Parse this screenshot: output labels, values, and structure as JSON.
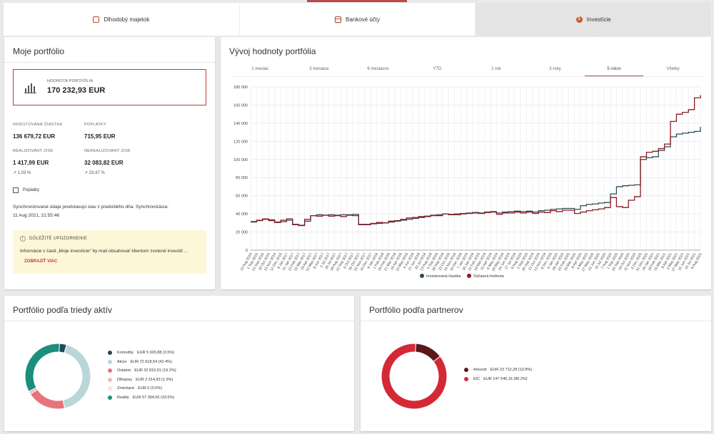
{
  "tabs": [
    {
      "label": "Dlhodobý majetok",
      "icon": "asset-icon"
    },
    {
      "label": "Bankové účty",
      "icon": "card-icon"
    },
    {
      "label": "Investície",
      "icon": "coin-icon"
    }
  ],
  "portfolio": {
    "title": "Moje portfólio",
    "value_label": "HODNOTA PORTFÓLIA",
    "value": "170 232,93 EUR",
    "invested_label": "INVESTOVANÁ ČIASTKA",
    "invested": "136 679,72 EUR",
    "fees_label": "POPLATKY",
    "fees": "715,95 EUR",
    "realized_label": "REALIZOVANÝ ZISK",
    "realized": "1 417,99 EUR",
    "realized_pct": "1,03 %",
    "unrealized_label": "NEREALIZOVANÝ ZISK",
    "unrealized": "32 083,82 EUR",
    "unrealized_pct": "23,47 %",
    "fees_checkbox": "Poplatky",
    "sync_text": "Synchronizované údaje predstavujú stav z predošlého dňa. Synchronizácia:",
    "sync_time": "11 Aug 2021, 21:55:46",
    "notice_title": "DÔLEŽITÉ UPOZORNENIE",
    "notice_text": "Informácie v časti „Moje investície“ by mali obsahovať klientom zvolené investič ...",
    "notice_link": "ZOBRAZIŤ VIAC"
  },
  "chart_card": {
    "title": "Vývoj hodnoty portfólia",
    "periods": [
      "1 mesiac",
      "3 mesiace",
      "6 mesiacov",
      "YTD",
      "1 rok",
      "3 roky",
      "5 rokov",
      "Všetky"
    ],
    "active_period": "5 rokov"
  },
  "chart_data": {
    "type": "line",
    "ylim": [
      0,
      180000
    ],
    "y_ticks": [
      0,
      20000,
      40000,
      60000,
      80000,
      100000,
      120000,
      140000,
      160000,
      180000
    ],
    "y_tick_labels": [
      "0",
      "20 000",
      "40 000",
      "60 000",
      "80 000",
      "100 000",
      "120 000",
      "140 000",
      "160 000",
      "180 000"
    ],
    "x_tick_labels": [
      "10 Aug 2016",
      "2 Sep 2016",
      "23 Sep 2016",
      "20 Oct 2016",
      "15 Nov 2016",
      "12 Dec 2016",
      "9 Jan 2017",
      "31 Jan 2017",
      "23 Feb 2017",
      "22 Mar 2017",
      "19 Apr 2017",
      "12 May 2017",
      "8 Jun 2017",
      "3 Jul 2017",
      "26 Jul 2017",
      "18 Aug 2017",
      "12 Sep 2017",
      "6 Oct 2017",
      "30 Oct 2017",
      "22 Nov 2017",
      "15 Dec 2017",
      "9 Jan 2018",
      "1 Feb 2018",
      "26 Feb 2018",
      "21 Mar 2018",
      "16 Apr 2018",
      "10 May 2018",
      "4 Jun 2018",
      "27 Jun 2018",
      "20 Jul 2018",
      "13 Aug 2018",
      "5 Sep 2018",
      "28 Sep 2018",
      "23 Oct 2018",
      "15 Nov 2018",
      "10 Dec 2018",
      "7 Jan 2019",
      "30 Jan 2019",
      "22 Feb 2019",
      "18 Mar 2019",
      "10 Apr 2019",
      "6 May 2019",
      "29 May 2019",
      "24 Jun 2019",
      "17 Jul 2019",
      "9 Aug 2019",
      "3 Sep 2019",
      "26 Sep 2019",
      "21 Oct 2019",
      "13 Nov 2019",
      "6 Dec 2019",
      "6 Jan 2020",
      "28 Jan 2020",
      "20 Feb 2020",
      "16 Mar 2020",
      "8 Apr 2020",
      "4 May 2020",
      "27 May 2020",
      "22 Jun 2020",
      "15 Jul 2020",
      "7 Aug 2020",
      "1 Sep 2020",
      "24 Sep 2020",
      "19 Oct 2020",
      "11 Nov 2020",
      "4 Dec 2020",
      "31 Dec 2020",
      "26 Jan 2021",
      "18 Feb 2021",
      "15 Mar 2021",
      "8 Apr 2021",
      "4 May 2021",
      "27 May 2021",
      "22 Jun 2021",
      "15 Jul 2021",
      "6 Aug 2021"
    ],
    "series": [
      {
        "name": "Investovaná čiastka",
        "color": "#2e4a5a",
        "values": [
          31000,
          33000,
          34000,
          33500,
          31000,
          31500,
          33000,
          28000,
          27000,
          32000,
          38000,
          39000,
          38500,
          39000,
          38500,
          39000,
          39000,
          39500,
          28000,
          28500,
          29000,
          29500,
          30000,
          31000,
          32000,
          33000,
          34000,
          35000,
          36000,
          37000,
          38000,
          39000,
          40000,
          39500,
          40000,
          40500,
          41000,
          41500,
          41000,
          42000,
          42500,
          41000,
          42000,
          42500,
          43000,
          42500,
          43000,
          42000,
          43500,
          44000,
          45000,
          45500,
          46000,
          46000,
          45000,
          49000,
          50500,
          51000,
          52000,
          52500,
          62000,
          70000,
          71000,
          71500,
          72000,
          100000,
          102000,
          103000,
          110000,
          114000,
          125000,
          128000,
          129000,
          130000,
          131000,
          136000
        ]
      },
      {
        "name": "Súčasná hodnota",
        "color": "#8b1a1f",
        "values": [
          31500,
          32500,
          34500,
          32500,
          30500,
          33000,
          34500,
          28500,
          27500,
          34000,
          38000,
          37500,
          38500,
          37500,
          38000,
          37000,
          38500,
          38000,
          28500,
          28000,
          29500,
          30500,
          30000,
          32000,
          32500,
          34000,
          35500,
          36000,
          37000,
          37500,
          38500,
          38000,
          40000,
          39000,
          39000,
          40000,
          40500,
          41000,
          40500,
          41500,
          42000,
          39500,
          41000,
          41000,
          42000,
          41000,
          42000,
          40500,
          42000,
          41500,
          43500,
          42500,
          44000,
          44000,
          40500,
          42000,
          43500,
          44500,
          45500,
          47000,
          58000,
          48000,
          47000,
          55000,
          59000,
          103000,
          108000,
          109000,
          112000,
          117000,
          142000,
          150000,
          152000,
          155000,
          168000,
          171000
        ]
      }
    ]
  },
  "class_card": {
    "title": "Portfólio podľa triedy aktív",
    "items": [
      {
        "name": "Komodity",
        "amount": "EUR 5 920,88 (3.5%)",
        "pct": 3.5,
        "color": "#22495a"
      },
      {
        "name": "Akcie",
        "amount": "EUR 72 618,54 (42.4%)",
        "pct": 42.4,
        "color": "#b9d6d8"
      },
      {
        "name": "Ostatné",
        "amount": "EUR 32 810,01 (19.2%)",
        "pct": 19.2,
        "color": "#e9737b"
      },
      {
        "name": "Dlhopisy",
        "amount": "EUR 2 514,93 (1.5%)",
        "pct": 1.5,
        "color": "#f2b8c0"
      },
      {
        "name": "Zmiešané",
        "amount": "EUR 0 (0.0%)",
        "pct": 0.0,
        "color": "#fbe3e6"
      },
      {
        "name": "Reality",
        "amount": "EUR 57 394,06 (33.5%)",
        "pct": 33.5,
        "color": "#1c8e7c"
      }
    ]
  },
  "partner_card": {
    "title": "Portfólio podľa partnerov",
    "items": [
      {
        "name": "Amundi",
        "amount": "EUR 23 712,28 (13.8%)",
        "pct": 13.8,
        "color": "#5e1618"
      },
      {
        "name": "EIC",
        "amount": "EUR 147 546,16 (86.2%)",
        "pct": 86.2,
        "color": "#d52836"
      }
    ]
  }
}
